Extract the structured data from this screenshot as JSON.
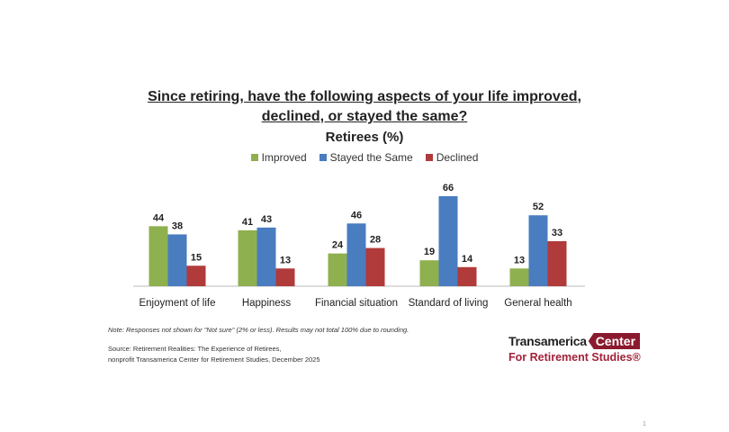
{
  "chart_data": {
    "type": "bar",
    "title": "Since retiring, have the following aspects of your life improved, declined, or stayed the same?",
    "title_line1": "Since retiring, have the following aspects of your life improved,",
    "title_line2": "declined, or stayed the same?",
    "subtitle": "Retirees (%)",
    "categories": [
      "Enjoyment of life",
      "Happiness",
      "Financial situation",
      "Standard of living",
      "General health"
    ],
    "series": [
      {
        "name": "Improved",
        "color": "#8fb04f",
        "values": [
          44,
          41,
          24,
          19,
          13
        ]
      },
      {
        "name": "Stayed the Same",
        "color": "#4a7cc0",
        "values": [
          38,
          43,
          46,
          66,
          52
        ]
      },
      {
        "name": "Declined",
        "color": "#b13a3a",
        "values": [
          15,
          13,
          28,
          14,
          33
        ]
      }
    ],
    "ylim": [
      0,
      66
    ],
    "legend_position": "top-center",
    "grid": false
  },
  "note": "Note: Responses not shown for \"Not sure\" (2% or less). Results may not total 100% due to rounding.",
  "source_line1": "Source: Retirement Realities: The Experience of Retirees,",
  "source_line2": "nonprofit Transamerica Center for Retirement Studies, December 2025",
  "logo": {
    "line1a": "Transamerica",
    "line1b": "Center",
    "line2": "For Retirement Studies®"
  },
  "page_number": "1"
}
